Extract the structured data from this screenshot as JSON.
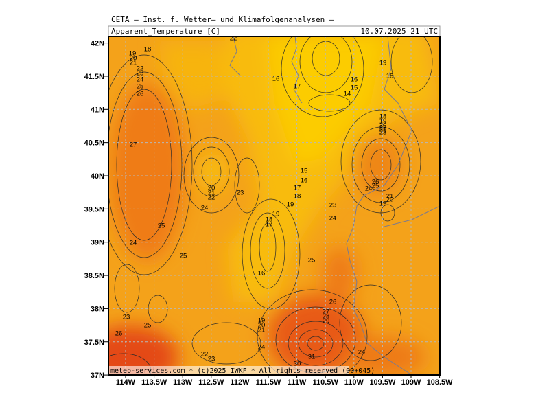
{
  "header": {
    "title": "CETA — Inst. f. Wetter— und Klimafolgenanalysen —",
    "parameter": "Apparent_Temperature [C]",
    "valid_time": "10.07.2025 21 UTC"
  },
  "axes": {
    "latitude_labels": [
      "42N",
      "41.5N",
      "41N",
      "40.5N",
      "40N",
      "39.5N",
      "39N",
      "38.5N",
      "38N",
      "37.5N",
      "37N"
    ],
    "longitude_labels": [
      "114W",
      "113.5W",
      "113W",
      "112.5W",
      "112W",
      "111.5W",
      "111W",
      "110.5W",
      "110W",
      "109.5W",
      "109W",
      "108.5W"
    ]
  },
  "contour_labels": [
    18,
    19,
    20,
    21,
    22,
    23,
    24,
    25,
    26,
    27,
    22,
    16,
    17,
    16,
    15,
    14,
    19,
    18,
    18,
    19,
    20,
    21,
    22,
    23,
    15,
    16,
    17,
    18,
    19,
    20,
    21,
    22,
    23,
    24,
    25,
    24,
    25,
    26,
    25,
    24,
    21,
    20,
    19,
    23,
    24,
    19,
    18,
    17,
    16,
    25,
    26,
    27,
    28,
    29,
    19,
    20,
    21,
    24,
    23,
    25,
    26,
    22,
    23,
    24,
    31,
    30
  ],
  "credit": "meteo-services.com * (c)2025 IWKF * All rights reserved (00+045)"
}
